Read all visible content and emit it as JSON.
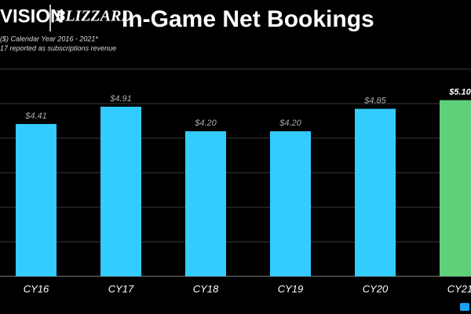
{
  "chart_data": {
    "type": "bar",
    "logos": [
      "VISION",
      "BLIZZARD"
    ],
    "title": "In-Game Net Bookings",
    "subtitle": [
      "($) Calendar Year 2016 - 2021*",
      "17 reported as subscriptions revenue"
    ],
    "categories": [
      "CY16",
      "CY17",
      "CY18",
      "CY19",
      "CY20",
      "CY21"
    ],
    "values": [
      4.41,
      4.91,
      4.2,
      4.2,
      4.85,
      5.1
    ],
    "value_labels": [
      "$4.41",
      "$4.91",
      "$4.20",
      "$4.20",
      "$4.85",
      "$5.10"
    ],
    "colors": [
      "#33ccff",
      "#33ccff",
      "#33ccff",
      "#33ccff",
      "#33ccff",
      "#5fd07a"
    ],
    "ylim": [
      0,
      6
    ],
    "yticks": [
      0,
      1,
      2,
      3,
      4,
      5,
      6
    ],
    "grid": true
  }
}
